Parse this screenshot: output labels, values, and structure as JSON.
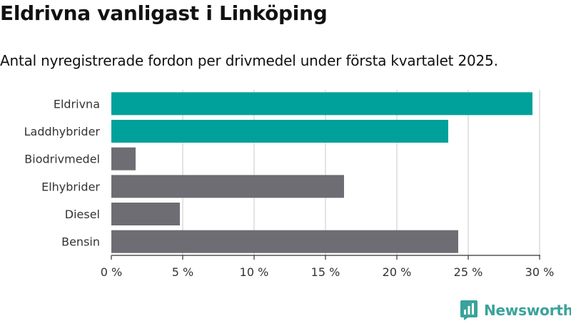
{
  "header": {
    "title": "Eldrivna vanligast i Linköping",
    "subtitle": "Antal nyregistrerade fordon per drivmedel under första kvartalet 2025."
  },
  "brand": {
    "name": "Newsworthy",
    "icon": "newsworthy-logo-icon",
    "color": "#3aa39a"
  },
  "colors": {
    "highlight": "#00a19a",
    "default": "#6e6d73",
    "grid": "#dcdcdc",
    "axis": "#333333"
  },
  "chart_data": {
    "type": "bar",
    "orientation": "horizontal",
    "categories": [
      "Eldrivna",
      "Laddhybrider",
      "Biodrivmedel",
      "Elhybrider",
      "Diesel",
      "Bensin"
    ],
    "values": [
      29.5,
      23.6,
      1.7,
      16.3,
      4.8,
      24.3
    ],
    "highlighted": [
      true,
      true,
      false,
      false,
      false,
      false
    ],
    "xlim": [
      0,
      30
    ],
    "xticks": [
      0,
      5,
      10,
      15,
      20,
      25,
      30
    ],
    "xtick_labels": [
      "0 %",
      "5 %",
      "10 %",
      "15 %",
      "20 %",
      "25 %",
      "30 %"
    ],
    "grid": true,
    "xlabel": "",
    "ylabel": ""
  }
}
